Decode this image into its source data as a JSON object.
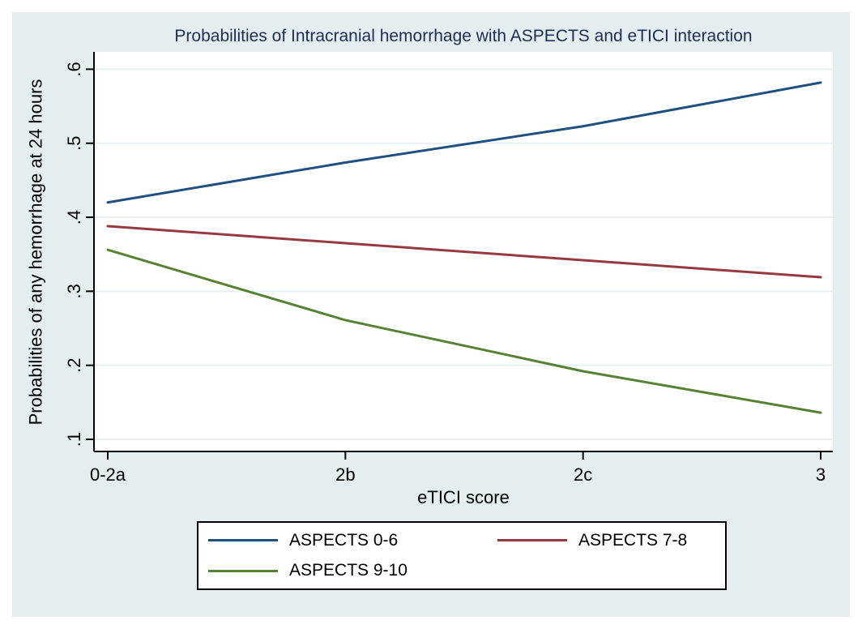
{
  "title": "Probabilities of Intracranial hemorrhage with ASPECTS and eTICI interaction",
  "chart_data": {
    "type": "line",
    "categories": [
      "0-2a",
      "2b",
      "2c",
      "3"
    ],
    "series": [
      {
        "name": "ASPECTS 0-6",
        "color": "#1e5082",
        "values": [
          0.42,
          0.474,
          0.523,
          0.582
        ]
      },
      {
        "name": "ASPECTS 7-8",
        "color": "#943a40",
        "values": [
          0.388,
          0.365,
          0.342,
          0.319
        ]
      },
      {
        "name": "ASPECTS 9-10",
        "color": "#568233",
        "values": [
          0.356,
          0.261,
          0.192,
          0.136
        ]
      }
    ],
    "xlabel": "eTICI score",
    "ylabel": "Probabilities of any hemorrhage at 24 hours",
    "ylim": [
      0.1,
      0.6
    ],
    "yticks": [
      ".1",
      ".2",
      ".3",
      ".4",
      ".5",
      ".6"
    ],
    "ytick_values": [
      0.1,
      0.2,
      0.3,
      0.4,
      0.5,
      0.6
    ],
    "grid": true,
    "legend_position": "bottom"
  },
  "colors": {
    "canvas_bg": "#e4eef0",
    "plot_bg": "#ffffff",
    "grid": "#e8eff3",
    "axis": "#000000",
    "title": "#1e2d53",
    "tick_label": "#000000",
    "legend_bg": "#ffffff",
    "legend_border": "#000000"
  }
}
